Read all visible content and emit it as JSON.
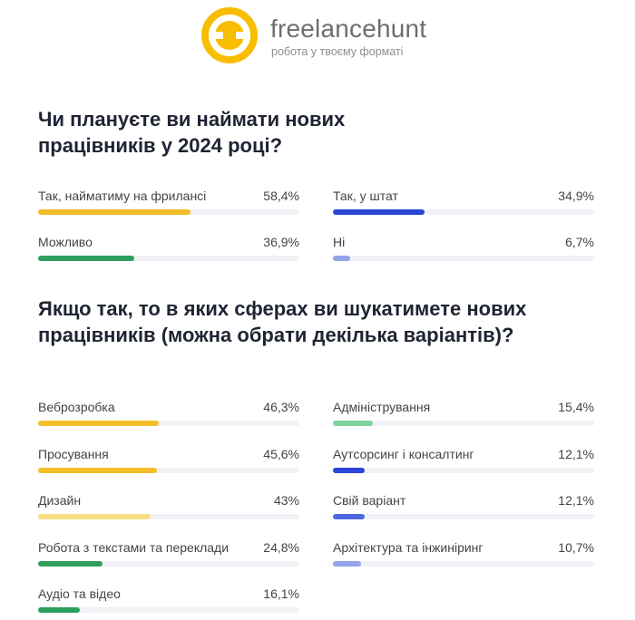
{
  "brand": {
    "name": "freelancehunt",
    "tagline": "робота у твоєму форматі"
  },
  "colors": {
    "logo_yellow": "#f8bd00",
    "bar_yellow": "#f4be2a",
    "bar_light_yellow": "#f7df85",
    "bar_green": "#2e9e5c",
    "bar_light_green": "#7fd39b",
    "bar_blue": "#2b45d6",
    "bar_mid_blue": "#4e68df",
    "bar_light_blue": "#93a4ec"
  },
  "chart_data": [
    {
      "type": "bar",
      "orientation": "horizontal",
      "title": "Чи плануєте ви наймати нових працівників у 2024 році?",
      "categories": [
        "Так, найматиму на фрилансі",
        "Так, у штат",
        "Можливо",
        "Ні"
      ],
      "values": [
        58.4,
        34.9,
        36.9,
        6.7
      ],
      "value_labels": [
        "58,4%",
        "34,9%",
        "36,9%",
        "6,7%"
      ],
      "bar_colors": [
        "#f4be2a",
        "#2b45d6",
        "#2e9e5c",
        "#93a4ec"
      ],
      "xlim": [
        0,
        100
      ],
      "grid": false
    },
    {
      "type": "bar",
      "orientation": "horizontal",
      "title": "Якщо так, то в яких сферах ви шукатимете нових працівників (можна обрати декілька варіантів)?",
      "categories": [
        "Веброзробка",
        "Адміністрування",
        "Просування",
        "Аутсорсинг і консалтинг",
        "Дизайн",
        "Свій варіант",
        "Робота з текстами та переклади",
        "Архітектура та інжиніринг",
        "Аудіо та відео"
      ],
      "values": [
        46.3,
        15.4,
        45.6,
        12.1,
        43,
        12.1,
        24.8,
        10.7,
        16.1
      ],
      "value_labels": [
        "46,3%",
        "15,4%",
        "45,6%",
        "12,1%",
        "43%",
        "12,1%",
        "24,8%",
        "10,7%",
        "16,1%"
      ],
      "bar_colors": [
        "#f4be2a",
        "#7fd39b",
        "#f4be2a",
        "#2b45d6",
        "#f7df85",
        "#4e68df",
        "#2e9e5c",
        "#93a4ec",
        "#2e9e5c"
      ],
      "xlim": [
        0,
        100
      ],
      "grid": false
    }
  ]
}
